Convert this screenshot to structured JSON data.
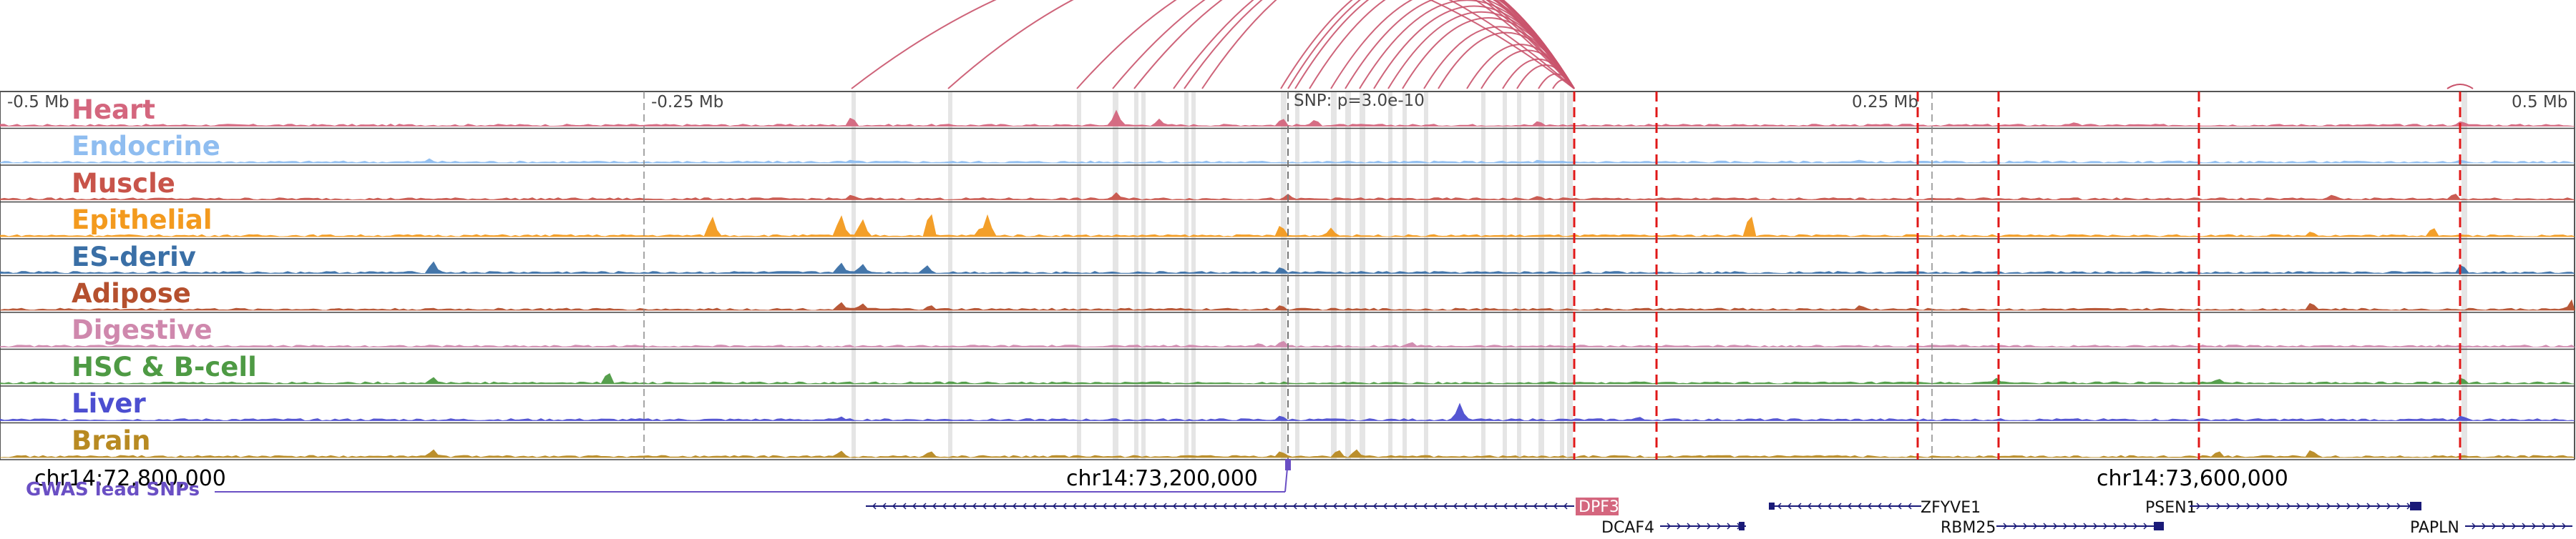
{
  "axis": {
    "left_label": "-0.5 Mb",
    "mid_left_label": "-0.25 Mb",
    "mid_right_label": "0.25 Mb",
    "right_label": "0.5 Mb"
  },
  "snp_label": "SNP: p=3.0e-10",
  "tracks": [
    {
      "name": "Heart",
      "color": "#d4667e"
    },
    {
      "name": "Endocrine",
      "color": "#8fbdf0"
    },
    {
      "name": "Muscle",
      "color": "#c8544a"
    },
    {
      "name": "Epithelial",
      "color": "#f39a1e"
    },
    {
      "name": "ES-deriv",
      "color": "#3a6fa6"
    },
    {
      "name": "Adipose",
      "color": "#b5502e"
    },
    {
      "name": "Digestive",
      "color": "#cf88ad"
    },
    {
      "name": "HSC & B-cell",
      "color": "#4e9a44"
    },
    {
      "name": "Liver",
      "color": "#4c4ed0"
    },
    {
      "name": "Brain",
      "color": "#b88a22"
    }
  ],
  "coordinates": [
    "chr14:72,800,000",
    "chr14:73,200,000",
    "chr14:73,600,000"
  ],
  "gwas_label": "GWAS lead SNPs",
  "genes": [
    {
      "name": "DPF3",
      "highlight": true
    },
    {
      "name": "DCAF4",
      "highlight": false
    },
    {
      "name": "ZFYVE1",
      "highlight": false
    },
    {
      "name": "RBM25",
      "highlight": false
    },
    {
      "name": "PSEN1",
      "highlight": false
    },
    {
      "name": "PAPLN",
      "highlight": false
    }
  ],
  "colors": {
    "arc": "#c9536b",
    "red_dash": "#e01818",
    "gray_band": "#dcdcdc",
    "gene": "#1a1a78",
    "gwas": "#6a4fc4"
  }
}
